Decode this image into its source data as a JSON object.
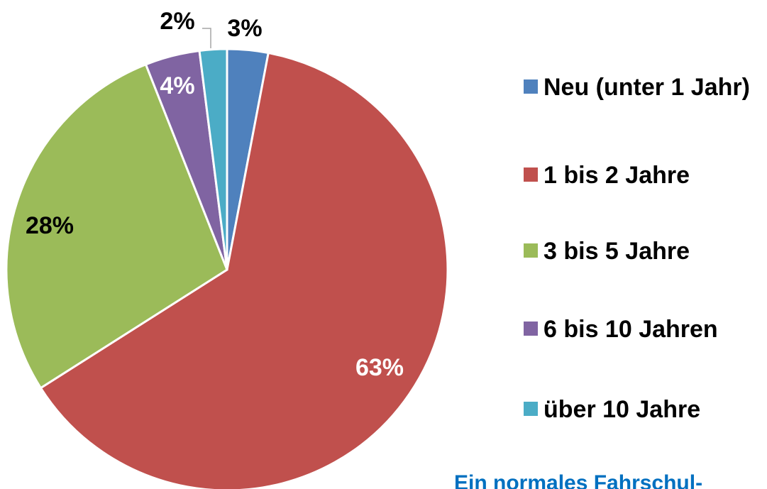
{
  "chart_data": {
    "type": "pie",
    "categories": [
      "Neu (unter 1 Jahr)",
      "1 bis 2 Jahre",
      "3 bis 5 Jahre",
      "6 bis 10 Jahren",
      "über 10 Jahre"
    ],
    "values": [
      3,
      63,
      28,
      4,
      2
    ],
    "value_labels": [
      "3%",
      "63%",
      "28%",
      "4%",
      "2%"
    ],
    "colors": [
      "#4f81bd",
      "#c0504d",
      "#9bbb59",
      "#8064a2",
      "#4bacc6"
    ],
    "legend": "right",
    "annotation": "Ein normales Fahrschul-"
  }
}
